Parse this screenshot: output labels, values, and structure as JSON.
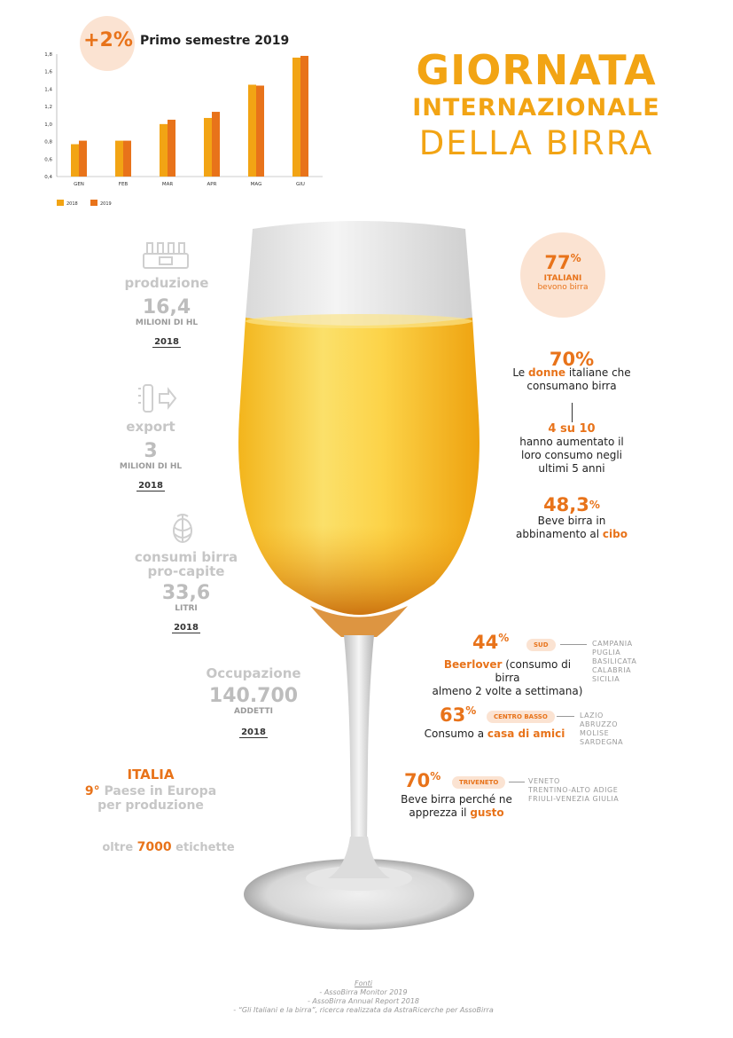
{
  "header": {
    "badge_value": "+2%",
    "chart_title": "Primo semestre 2019"
  },
  "chart_data": {
    "type": "bar",
    "title": "Primo semestre 2019",
    "categories": [
      "GEN",
      "FEB",
      "MAR",
      "APR",
      "MAG",
      "GIU"
    ],
    "yticks": [
      "0,4",
      "0,6",
      "0,8",
      "1,0",
      "1,2",
      "1,4",
      "1,6",
      "1,8"
    ],
    "ylim": [
      0.4,
      1.8
    ],
    "series": [
      {
        "name": "2018",
        "color": "#f2a414",
        "values": [
          0.77,
          0.81,
          1.0,
          1.07,
          1.45,
          1.76
        ]
      },
      {
        "name": "2019",
        "color": "#e8731a",
        "values": [
          0.81,
          0.81,
          1.05,
          1.14,
          1.44,
          1.78
        ]
      }
    ],
    "legend": "bottom-left",
    "grid": false
  },
  "title": {
    "line1": "GIORNATA",
    "line2": "INTERNAZIONALE",
    "line3": "DELLA BIRRA"
  },
  "left": {
    "produzione": {
      "label": "produzione",
      "value": "16,4",
      "unit": "MILIONI DI HL",
      "year": "2018",
      "icon": "beer-crate-icon"
    },
    "export": {
      "label": "export",
      "value": "3",
      "unit": "MILIONI DI HL",
      "year": "2018",
      "icon": "beer-export-icon"
    },
    "consumi": {
      "label1": "consumi birra",
      "label2": "pro-capite",
      "value": "33,6",
      "unit": "LITRI",
      "year": "2018",
      "icon": "hops-icon"
    },
    "occupazione": {
      "label": "Occupazione",
      "value": "140.700",
      "unit": "ADDETTI",
      "year": "2018"
    },
    "italia": {
      "title": "ITALIA",
      "rank": "9°",
      "line1_rest": " Paese in Europa",
      "line2": "per produzione"
    },
    "etichette": {
      "pre": "oltre ",
      "num": "7000",
      "post": " etichette"
    }
  },
  "right": {
    "italiani": {
      "value": "77",
      "pct": "%",
      "label": "ITALIANI",
      "sub": "bevono birra"
    },
    "donne": {
      "value": "70%",
      "pre": "Le ",
      "highlight": "donne",
      "post": " italiane che",
      "line2": "consumano birra"
    },
    "quattro": {
      "value": "4 su 10",
      "line1": "hanno aumentato il",
      "line2": "loro consumo negli",
      "line3": "ultimi 5 anni"
    },
    "cibo": {
      "value": "48,3",
      "pct": "%",
      "line1": "Beve birra in",
      "pre2": "abbinamento al ",
      "highlight": "cibo"
    },
    "sud": {
      "value": "44",
      "pct": "%",
      "pill": "SUD",
      "highlight": "Beerlover",
      "rest1": " (consumo di birra",
      "line2": "almeno 2 volte a settimana)",
      "regions": [
        "CAMPANIA",
        "PUGLIA",
        "BASILICATA",
        "CALABRIA",
        "SICILIA"
      ]
    },
    "centro": {
      "value": "63",
      "pct": "%",
      "pill": "CENTRO BASSO",
      "pre": "Consumo a ",
      "highlight": "casa di amici",
      "regions": [
        "LAZIO",
        "ABRUZZO",
        "MOLISE",
        "SARDEGNA"
      ]
    },
    "triveneto": {
      "value": "70",
      "pct": "%",
      "pill": "TRIVENETO",
      "line1": "Beve birra perché ne",
      "pre2": "apprezza il ",
      "highlight": "gusto",
      "regions": [
        "VENETO",
        "TRENTINO-ALTO ADIGE",
        "FRIULI-VENEZIA GIULIA"
      ]
    }
  },
  "sources": {
    "title": "Fonti",
    "items": [
      "- AssoBirra Monitor 2019",
      "- AssoBirra Annual Report 2018",
      "- “Gli Italiani e la birra”, ricerca realizzata da AstraRicerche per AssoBirra"
    ]
  }
}
